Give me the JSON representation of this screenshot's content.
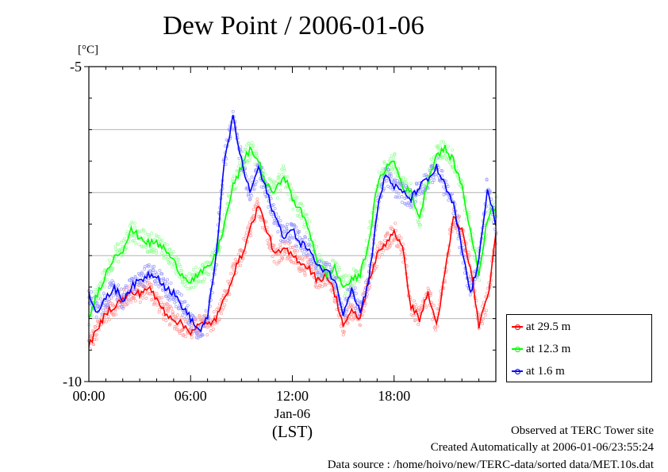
{
  "chart_data": {
    "type": "line",
    "title": "Dew Point / 2006-01-06",
    "ylabel": "[°C]",
    "xlabel": "(LST)",
    "date_label": "Jan-06",
    "xlim": [
      0,
      24
    ],
    "ylim": [
      -10,
      -5
    ],
    "y_ticks": [
      -5,
      -10
    ],
    "y_grid": [
      -6,
      -7,
      -8,
      -9
    ],
    "x_ticks": [
      {
        "value": 0,
        "label": "00:00"
      },
      {
        "value": 6,
        "label": "06:00"
      },
      {
        "value": 12,
        "label": "12:00"
      },
      {
        "value": 18,
        "label": "18:00"
      }
    ],
    "grid": "horizontal",
    "legend_position": "right",
    "x": [
      0,
      0.5,
      1,
      1.5,
      2,
      2.5,
      3,
      3.5,
      4,
      4.5,
      5,
      5.5,
      6,
      6.5,
      7,
      7.5,
      8,
      8.5,
      9,
      9.5,
      10,
      10.5,
      11,
      11.5,
      12,
      12.5,
      13,
      13.5,
      14,
      14.5,
      15,
      15.5,
      16,
      16.5,
      17,
      17.5,
      18,
      18.5,
      19,
      19.5,
      20,
      20.5,
      21,
      21.5,
      22,
      22.5,
      23,
      23.5,
      24
    ],
    "series": [
      {
        "name": "at 29.5 m",
        "color": "#ff0000",
        "band_color": "#ff9a9a",
        "values": [
          -9.4,
          -9.2,
          -8.9,
          -8.8,
          -8.7,
          -8.6,
          -8.6,
          -8.5,
          -8.7,
          -8.9,
          -9.0,
          -9.1,
          -9.2,
          -9.1,
          -9.1,
          -9.0,
          -8.7,
          -8.3,
          -8.0,
          -7.6,
          -7.2,
          -7.6,
          -8.0,
          -7.9,
          -8.0,
          -8.1,
          -8.2,
          -8.4,
          -8.3,
          -8.6,
          -9.1,
          -8.9,
          -9.0,
          -8.4,
          -8.0,
          -7.8,
          -7.6,
          -7.9,
          -8.8,
          -9.0,
          -8.6,
          -9.1,
          -8.3,
          -7.4,
          -7.6,
          -8.2,
          -9.1,
          -8.7,
          -7.7
        ],
        "note": "values sampled at x"
      },
      {
        "name": "at 12.3 m",
        "color": "#00ff00",
        "band_color": "#9aff9a",
        "values": [
          -9.0,
          -8.6,
          -8.3,
          -8.0,
          -7.9,
          -7.6,
          -7.7,
          -7.8,
          -7.8,
          -7.9,
          -8.1,
          -8.3,
          -8.4,
          -8.3,
          -8.2,
          -8.0,
          -7.5,
          -6.9,
          -6.6,
          -6.3,
          -6.5,
          -6.9,
          -7.0,
          -6.7,
          -7.1,
          -7.3,
          -7.6,
          -8.1,
          -8.3,
          -8.2,
          -8.5,
          -8.4,
          -8.3,
          -7.8,
          -6.9,
          -6.6,
          -6.5,
          -6.9,
          -7.0,
          -7.4,
          -6.8,
          -6.4,
          -6.3,
          -6.5,
          -6.9,
          -7.6,
          -8.3,
          -7.4,
          -7.2
        ]
      },
      {
        "name": "at 1.6 m",
        "color": "#0000ff",
        "band_color": "#9a9aff",
        "values": [
          -8.6,
          -8.9,
          -8.7,
          -8.5,
          -8.7,
          -8.5,
          -8.4,
          -8.3,
          -8.3,
          -8.5,
          -8.6,
          -8.8,
          -9.0,
          -9.2,
          -9.0,
          -8.0,
          -6.5,
          -5.8,
          -6.5,
          -7.0,
          -6.6,
          -7.0,
          -7.4,
          -7.7,
          -7.6,
          -7.8,
          -7.9,
          -8.2,
          -8.2,
          -8.4,
          -8.9,
          -8.5,
          -8.9,
          -8.4,
          -7.3,
          -6.7,
          -6.9,
          -7.0,
          -7.1,
          -6.9,
          -6.8,
          -6.6,
          -6.9,
          -7.2,
          -7.9,
          -8.6,
          -8.1,
          -6.9,
          -7.5
        ]
      }
    ]
  },
  "footer": {
    "site": "Observed at TERC Tower site",
    "created": "Created Automatically at 2006-01-06/23:55:24",
    "source": "Data source : /home/hoivo/new/TERC-data/sorted  data/MET.10s.dat"
  }
}
